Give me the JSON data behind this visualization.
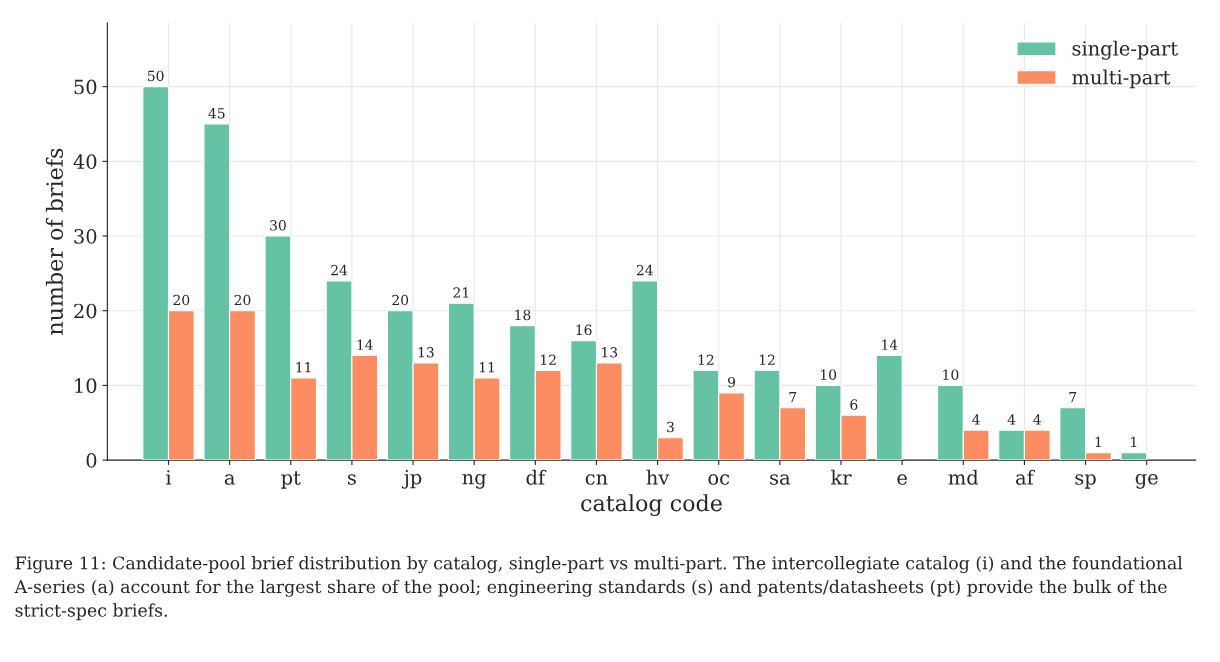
{
  "chart_data": {
    "type": "bar",
    "xlabel": "catalog code",
    "ylabel": "number of briefs",
    "categories": [
      "i",
      "a",
      "pt",
      "s",
      "jp",
      "ng",
      "df",
      "cn",
      "hv",
      "oc",
      "sa",
      "kr",
      "e",
      "md",
      "af",
      "sp",
      "ge"
    ],
    "series": [
      {
        "name": "single-part",
        "color": "#66c2a5",
        "values": [
          50,
          45,
          30,
          24,
          20,
          21,
          18,
          16,
          24,
          12,
          12,
          10,
          14,
          10,
          4,
          7,
          1
        ]
      },
      {
        "name": "multi-part",
        "color": "#fc8d62",
        "values": [
          20,
          20,
          11,
          14,
          13,
          11,
          12,
          13,
          3,
          9,
          7,
          6,
          null,
          4,
          4,
          1,
          null
        ]
      }
    ],
    "ylim": [
      0,
      58.5
    ],
    "yticks": [
      0,
      10,
      20,
      30,
      40,
      50
    ],
    "grid": true,
    "legend": "top right",
    "data_labels": true,
    "annotations": [
      "Figure 11: Candidate-pool brief distribution by catalog, single-part vs multi-part. The intercollegiate catalog (i) and the foundational A-series (a) account for the largest share of the pool; engineering standards (s) and patents/datasheets (pt) provide the bulk of the strict-spec briefs."
    ]
  }
}
